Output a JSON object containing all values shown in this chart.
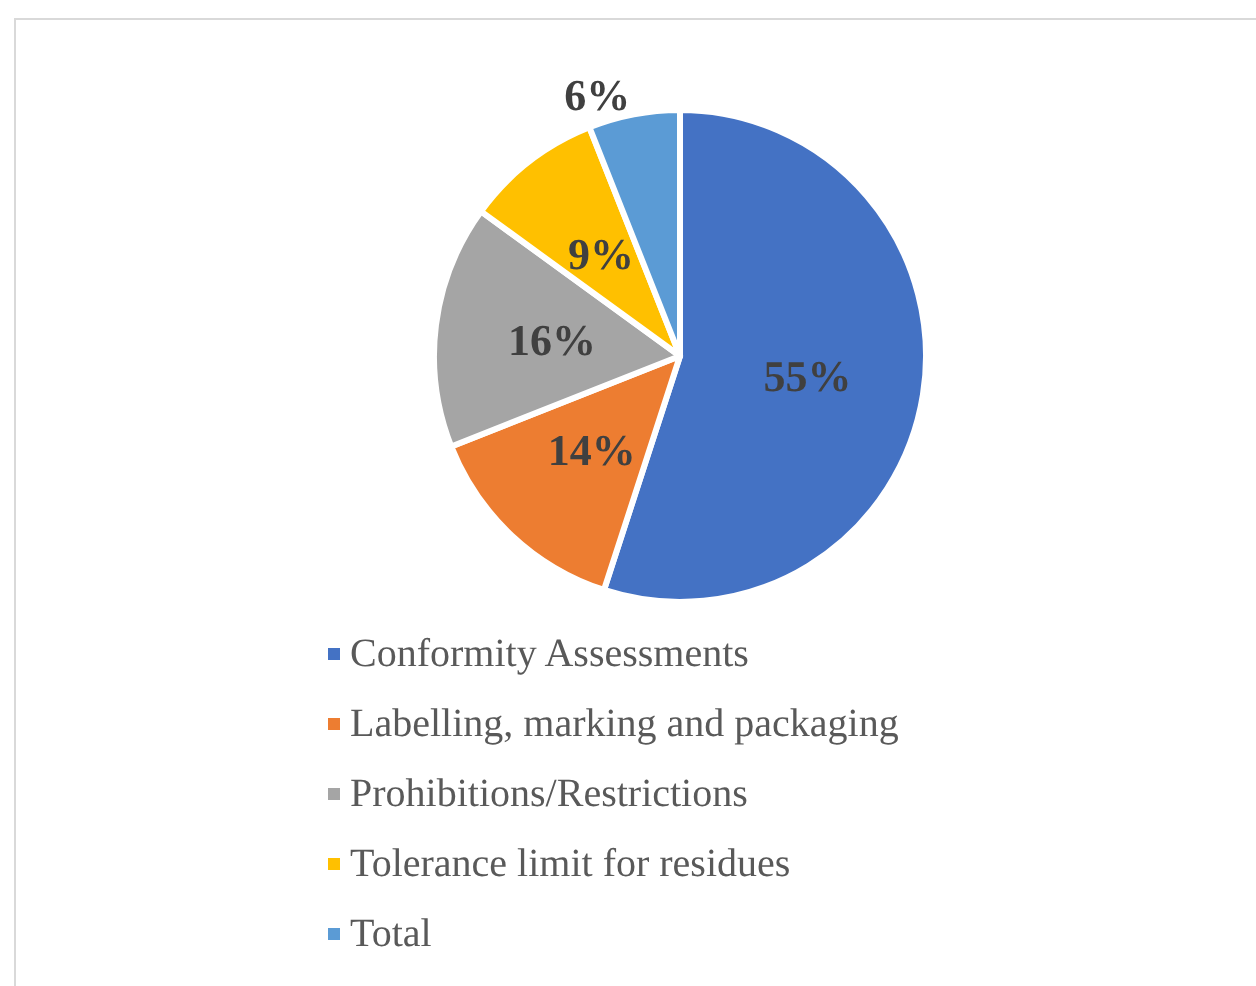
{
  "chart_data": {
    "type": "pie",
    "categories": [
      "Conformity Assessments",
      "Labelling, marking and packaging",
      "Prohibitions/Restrictions",
      "Tolerance limit for residues",
      "Total"
    ],
    "values": [
      55,
      14,
      16,
      9,
      6
    ],
    "colors": [
      "#4472c4",
      "#ed7d31",
      "#a5a5a5",
      "#ffc000",
      "#5b9bd5"
    ],
    "value_labels": [
      "55%",
      "14%",
      "16%",
      "9%",
      "6%"
    ],
    "legend": "bottom"
  }
}
